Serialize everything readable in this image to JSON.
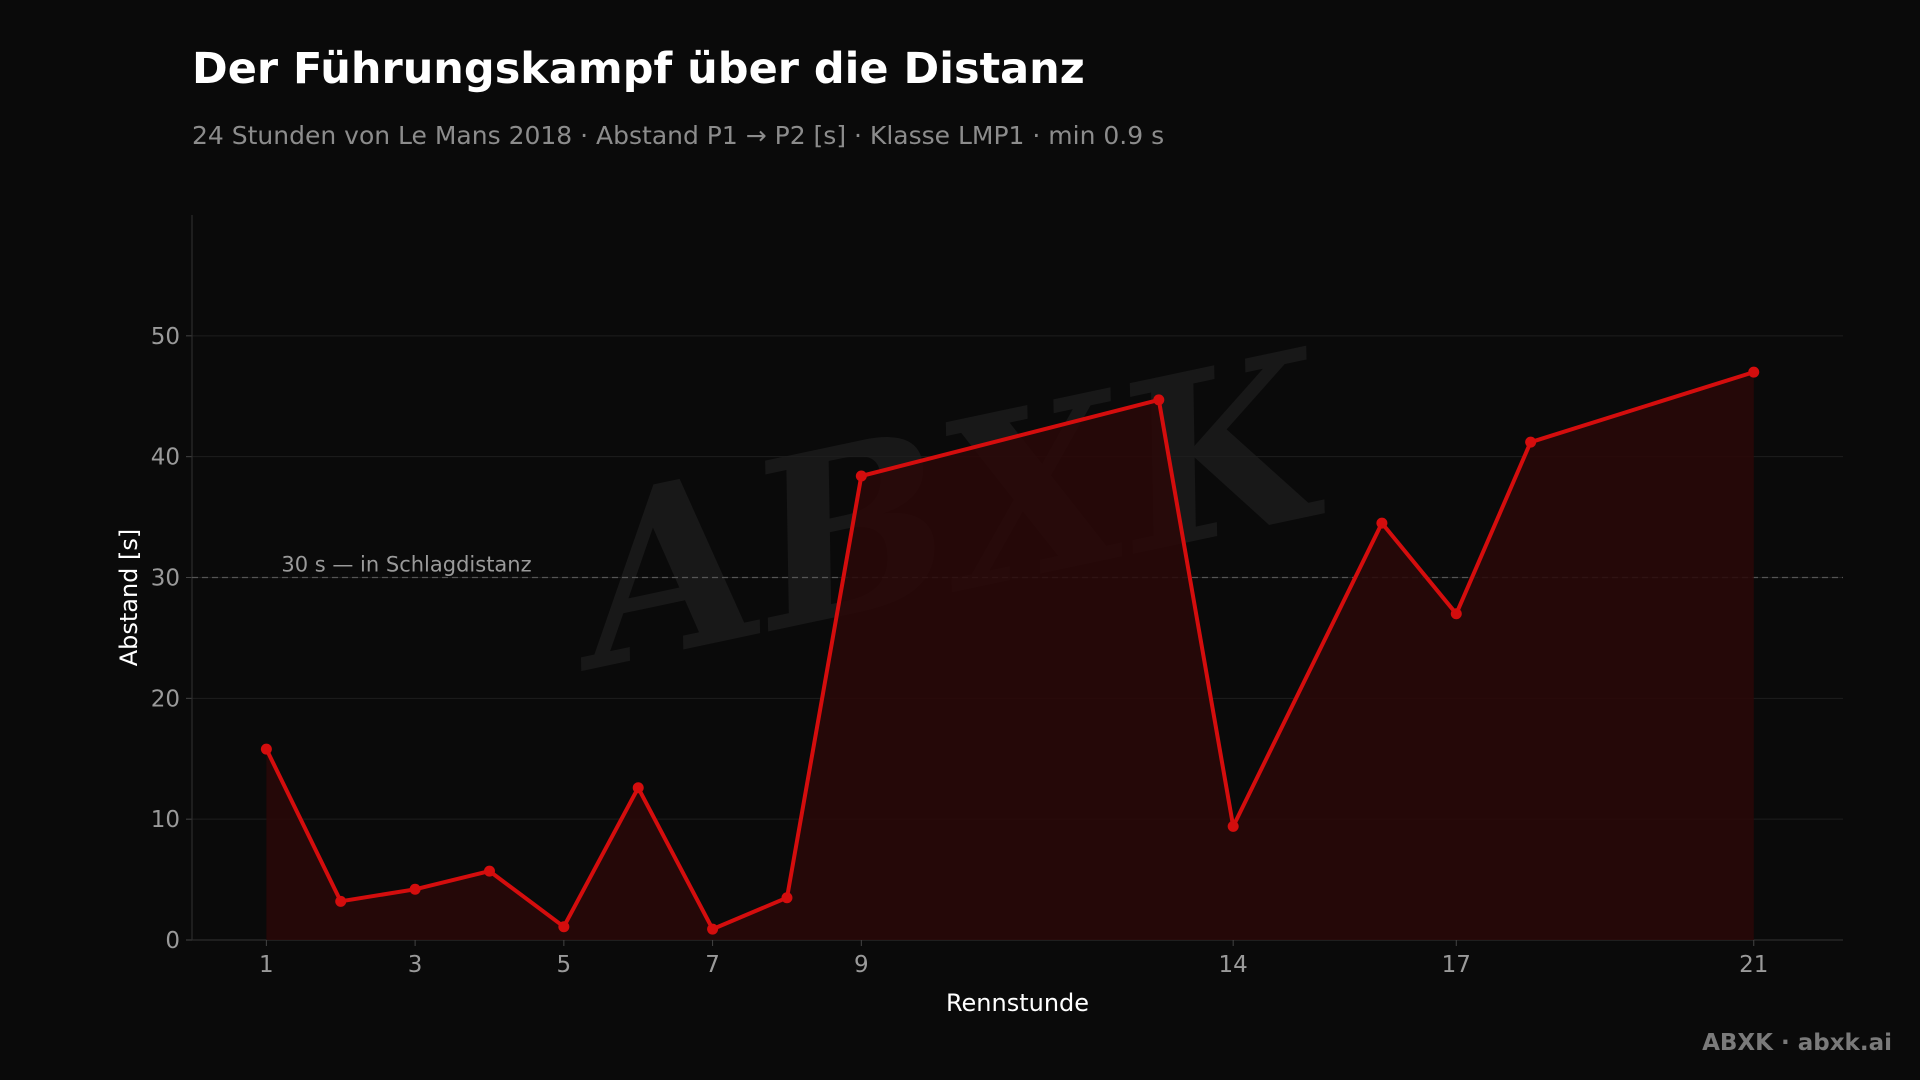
{
  "title": "Der Führungskampf über die Distanz",
  "subtitle": "24 Stunden von Le Mans 2018 · Abstand P1 → P2 [s] · Klasse LMP1 · min 0.9 s",
  "credit": "ABXK · abxk.ai",
  "watermark": "ABXK",
  "colors": {
    "background": "#0a0a0a",
    "line": "#d40d0d",
    "area": "#2a0808",
    "grid": "#1e1e1e",
    "reference": "#555555"
  },
  "chart_data": {
    "type": "area",
    "xlabel": "Rennstunde",
    "ylabel": "Abstand [s]",
    "xlim": [
      0,
      22.2
    ],
    "ylim": [
      0,
      60
    ],
    "x_ticks": [
      1,
      3,
      5,
      7,
      9,
      14,
      17,
      21
    ],
    "y_ticks": [
      0,
      10,
      20,
      30,
      40,
      50
    ],
    "grid": "horizontal",
    "series": [
      {
        "x": [
          1,
          2,
          3,
          4,
          5,
          6,
          7,
          8,
          9,
          13,
          14,
          16,
          17,
          18,
          21
        ],
        "values": [
          15.8,
          3.2,
          4.2,
          5.7,
          1.1,
          12.6,
          0.9,
          3.5,
          38.4,
          44.7,
          9.4,
          34.5,
          27.0,
          41.2,
          47.0
        ]
      }
    ],
    "reference_line": {
      "y": 30,
      "label": "30 s — in Schlagdistanz"
    }
  }
}
